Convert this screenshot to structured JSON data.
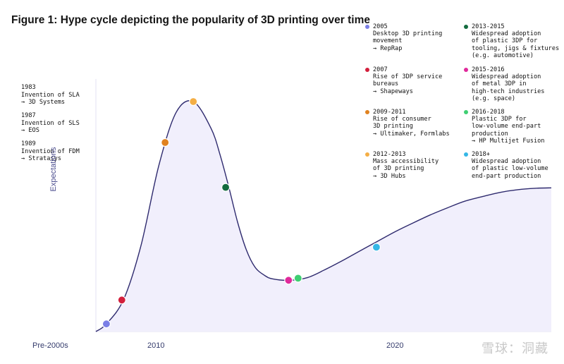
{
  "chart_data": {
    "type": "line",
    "title": "Figure 1: Hype cycle depicting the popularity of 3D printing over time",
    "xlabel": "",
    "ylabel": "Expectations",
    "x_tick_labels": [
      "Pre-2000s",
      "2010",
      "2020"
    ],
    "xlim": [
      0,
      100
    ],
    "ylim": [
      0,
      100
    ],
    "curve": {
      "x": [
        0,
        2.3,
        6.1,
        9.9,
        13.8,
        17.6,
        21.4,
        25.3,
        27.3,
        29.1,
        31.1,
        33.0,
        34.9,
        36.9,
        38.8,
        42.6,
        46.5,
        50.3,
        54.2,
        58.0,
        61.8,
        65.7,
        69.5,
        73.4,
        77.2,
        81.0,
        84.9,
        88.7,
        92.6,
        96.4,
        100
      ],
      "y": [
        0,
        3.3,
        14.0,
        37.4,
        72.0,
        95.2,
        100,
        88.3,
        76.6,
        63.5,
        47.7,
        35.7,
        28.1,
        24.6,
        22.9,
        22.3,
        23.5,
        26.9,
        30.9,
        35.1,
        39.2,
        43.4,
        47.1,
        50.7,
        53.8,
        56.7,
        58.7,
        60.5,
        61.7,
        62.3,
        62.5
      ]
    },
    "markers": [
      {
        "label": "2005",
        "x": 2.3,
        "y": 3.3,
        "color": "#7b7fe6"
      },
      {
        "label": "2007",
        "x": 5.7,
        "y": 13.7,
        "color": "#d31f3c"
      },
      {
        "label": "2009-2011",
        "x": 15.2,
        "y": 82.2,
        "color": "#e0821f"
      },
      {
        "label": "2012-2013",
        "x": 21.4,
        "y": 100,
        "color": "#f4ae45"
      },
      {
        "label": "2013-2015",
        "x": 28.5,
        "y": 62.7,
        "color": "#136b3e"
      },
      {
        "label": "2015-2016",
        "x": 42.3,
        "y": 22.3,
        "color": "#e0299b"
      },
      {
        "label": "2016-2018",
        "x": 44.4,
        "y": 23.2,
        "color": "#3fcf72"
      },
      {
        "label": "2018+",
        "x": 61.6,
        "y": 36.7,
        "color": "#35b7e6"
      }
    ],
    "legend_position": "top-right",
    "grid": false
  },
  "early_milestones": [
    {
      "year": "1983",
      "event": "Invention of SLA",
      "company": "→ 3D Systems"
    },
    {
      "year": "1987",
      "event": "Invention of SLS",
      "company": "→ EOS"
    },
    {
      "year": "1989",
      "event": "Invention of FDM",
      "company": "→ Stratasys"
    }
  ],
  "legend": [
    {
      "color": "#7b7fe6",
      "year": "2005",
      "text": "Desktop 3D printing\nmovement\n→ RepRap"
    },
    {
      "color": "#d31f3c",
      "year": "2007",
      "text": "Rise of 3DP service\nbureaus\n→ Shapeways"
    },
    {
      "color": "#e0821f",
      "year": "2009-2011",
      "text": "Rise of consumer\n3D printing\n→ Ultimaker, Formlabs"
    },
    {
      "color": "#f4ae45",
      "year": "2012-2013",
      "text": "Mass accessibility\nof 3D printing\n→ 3D Hubs"
    },
    {
      "color": "#136b3e",
      "year": "2013-2015",
      "text": "Widespread adoption\nof plastic 3DP for\ntooling, jigs & fixtures\n(e.g. automotive)"
    },
    {
      "color": "#e0299b",
      "year": "2015-2016",
      "text": "Widespread adoption\nof metal 3DP in\nhigh-tech industries\n(e.g. space)"
    },
    {
      "color": "#3fcf72",
      "year": "2016-2018",
      "text": "Plastic 3DP for\nlow-volume end-part\nproduction\n→ HP Multijet Fusion"
    },
    {
      "color": "#35b7e6",
      "year": "2018+",
      "text": "Widespread adoption\nof plastic low-volume\nend-part production"
    }
  ],
  "watermark": "雪球：洞藏",
  "colors": {
    "curve": "#2e2a6e",
    "fill": "#f1effc",
    "axis": "#d9d8f0",
    "tick_text": "#333a6b"
  }
}
